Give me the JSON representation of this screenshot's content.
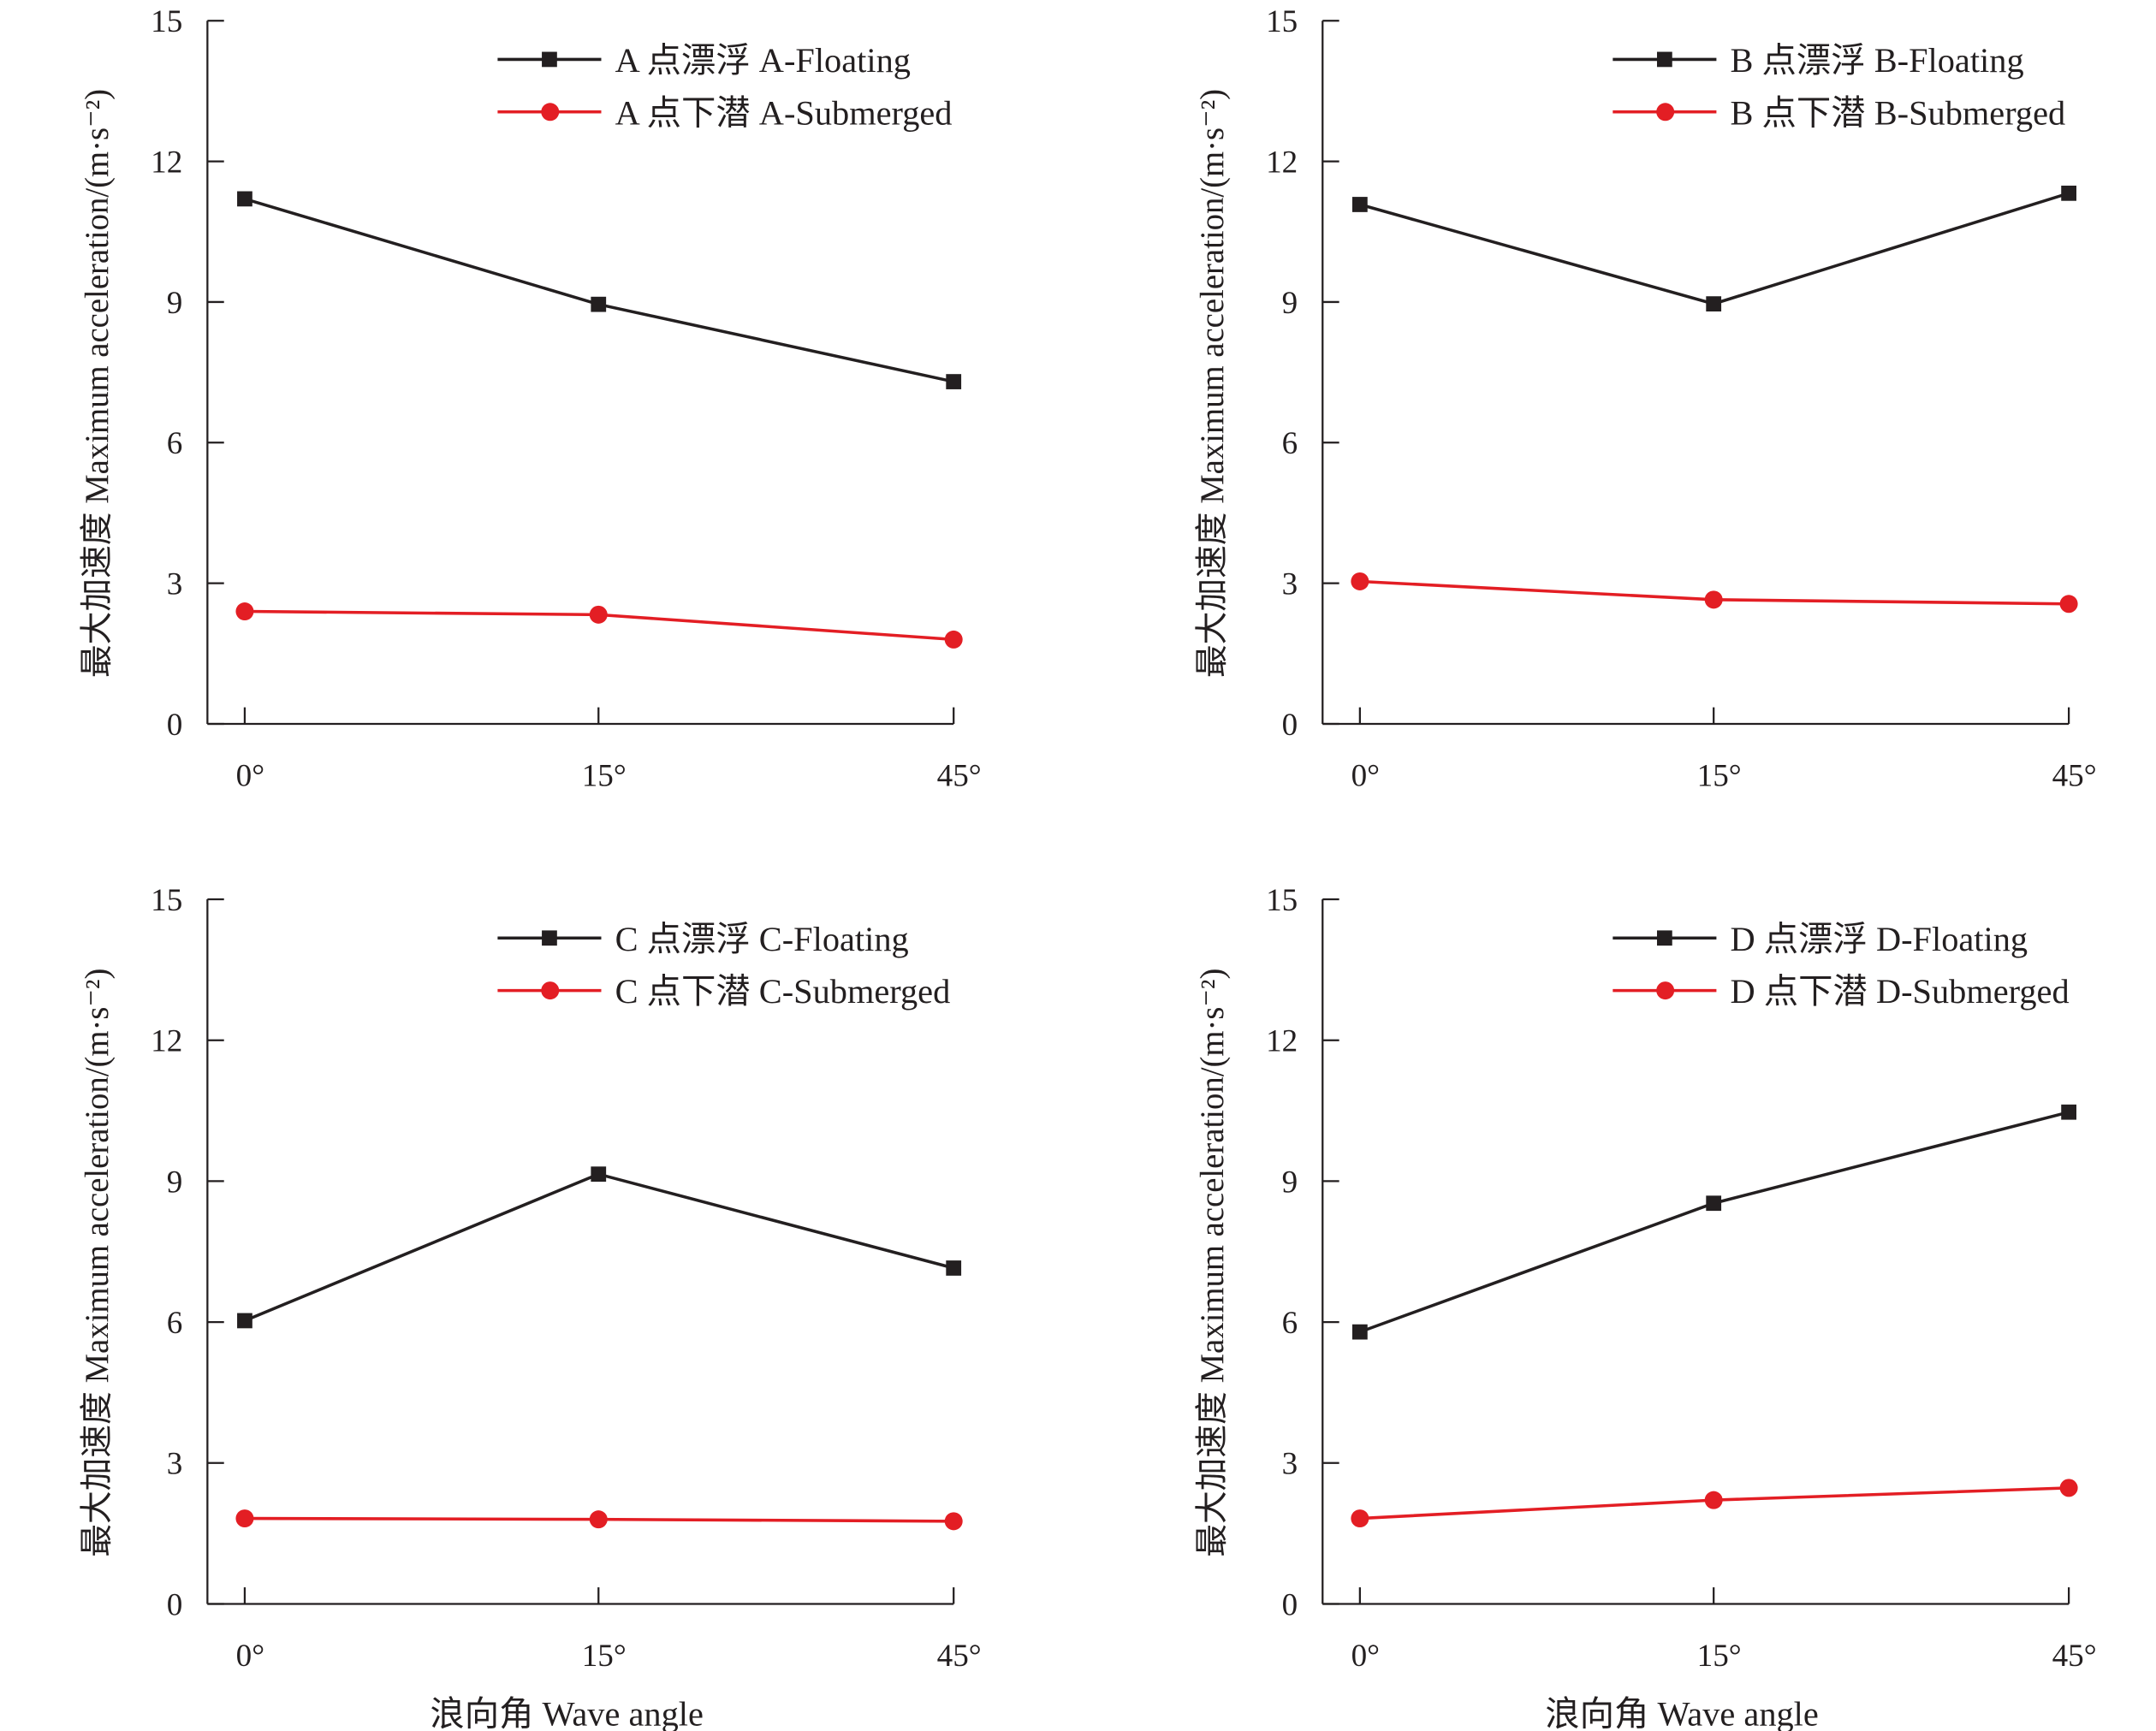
{
  "chart_data": [
    {
      "type": "line",
      "panel": "A",
      "categories": [
        "0°",
        "15°",
        "45°"
      ],
      "xlabel": "",
      "ylabel": "最大加速度 Maximum acceleration/(m·s⁻²)",
      "ylim": [
        0,
        15
      ],
      "yticks": [
        "0",
        "3",
        "6",
        "9",
        "12",
        "15"
      ],
      "legend_position": "top-right",
      "series": [
        {
          "name": "A 点漂浮 A-Floating",
          "marker": "square",
          "color": "#231f20",
          "values": [
            11.2,
            8.95,
            7.3
          ]
        },
        {
          "name": "A 点下潜 A-Submerged",
          "marker": "circle",
          "color": "#e31e24",
          "values": [
            2.4,
            2.33,
            1.8
          ]
        }
      ]
    },
    {
      "type": "line",
      "panel": "B",
      "categories": [
        "0°",
        "15°",
        "45°"
      ],
      "xlabel": "",
      "ylabel": "最大加速度 Maximum acceleration/(m·s⁻²)",
      "ylim": [
        0,
        15
      ],
      "yticks": [
        "0",
        "3",
        "6",
        "9",
        "12",
        "15"
      ],
      "legend_position": "top-right",
      "series": [
        {
          "name": "B 点漂浮 B-Floating",
          "marker": "square",
          "color": "#231f20",
          "values": [
            11.08,
            8.96,
            11.32
          ]
        },
        {
          "name": "B 点下潜 B-Submerged",
          "marker": "circle",
          "color": "#e31e24",
          "values": [
            3.04,
            2.65,
            2.56
          ]
        }
      ]
    },
    {
      "type": "line",
      "panel": "C",
      "categories": [
        "0°",
        "15°",
        "45°"
      ],
      "xlabel": "浪向角 Wave angle",
      "ylabel": "最大加速度 Maximum acceleration/(m·s⁻²)",
      "ylim": [
        0,
        15
      ],
      "yticks": [
        "0",
        "3",
        "6",
        "9",
        "12",
        "15"
      ],
      "legend_position": "top-right",
      "series": [
        {
          "name": "C 点漂浮 C-Floating",
          "marker": "square",
          "color": "#231f20",
          "values": [
            6.03,
            9.15,
            7.15
          ]
        },
        {
          "name": "C 点下潜 C-Submerged",
          "marker": "circle",
          "color": "#e31e24",
          "values": [
            1.82,
            1.8,
            1.76
          ]
        }
      ]
    },
    {
      "type": "line",
      "panel": "D",
      "categories": [
        "0°",
        "15°",
        "45°"
      ],
      "xlabel": "浪向角 Wave angle",
      "ylabel": "最大加速度 Maximum acceleration/(m·s⁻²)",
      "ylim": [
        0,
        15
      ],
      "yticks": [
        "0",
        "3",
        "6",
        "9",
        "12",
        "15"
      ],
      "legend_position": "top-right",
      "series": [
        {
          "name": "D 点漂浮 D-Floating",
          "marker": "square",
          "color": "#231f20",
          "values": [
            5.79,
            8.53,
            10.47
          ]
        },
        {
          "name": "D 点下潜 D-Submerged",
          "marker": "circle",
          "color": "#e31e24",
          "values": [
            1.82,
            2.21,
            2.47
          ]
        }
      ]
    }
  ]
}
